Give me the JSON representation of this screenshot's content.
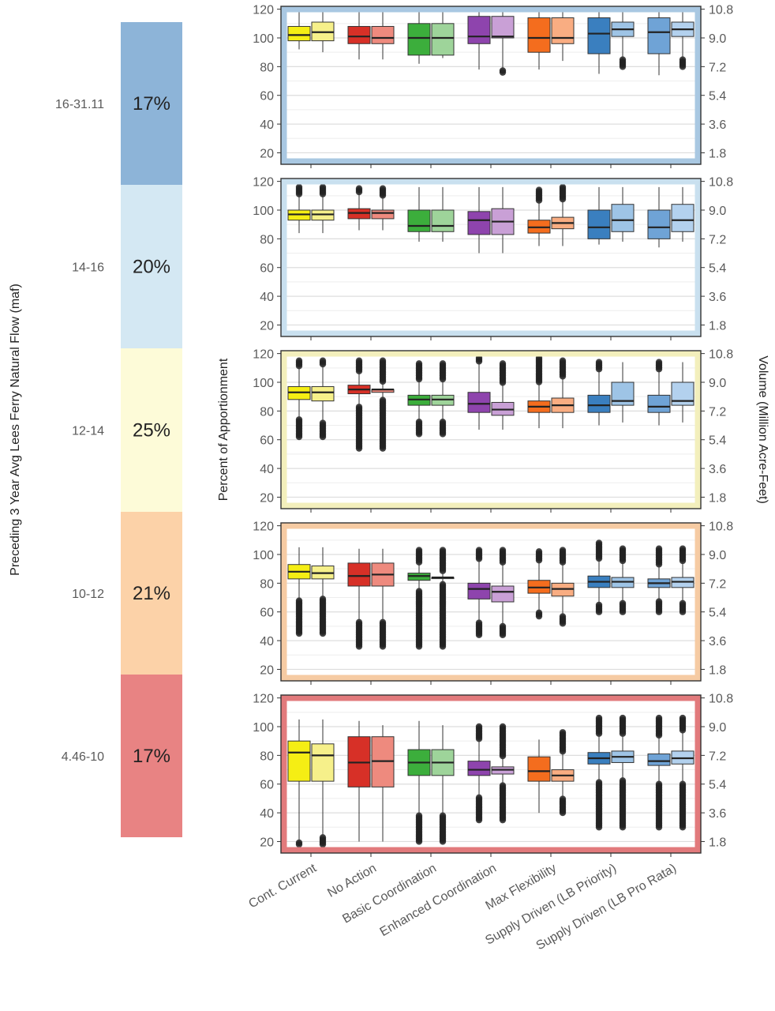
{
  "chart_data": {
    "type": "boxplot",
    "left_axis_title": "Percent of Apportionment",
    "right_axis_title": "Volume (Million Acre-Feet)",
    "band_axis_title": "Preceding 3 Year Avg Lees Ferry Natural Flow (maf)",
    "left_ticks": [
      20,
      40,
      60,
      80,
      100,
      120
    ],
    "right_ticks": [
      "1.8",
      "3.6",
      "5.4",
      "7.2",
      "9.0",
      "10.8"
    ],
    "ylim": [
      12,
      122
    ],
    "categories": [
      "Cont. Current",
      "No Action",
      "Basic Coordination",
      "Enhanced Coordination",
      "Max Flexibility",
      "Supply Driven (LB Priority)",
      "Supply Driven (LB Pro Rata)"
    ],
    "category_colors": [
      [
        "#f5ee14",
        "#f6f08a"
      ],
      [
        "#d73027",
        "#ee8a7e"
      ],
      [
        "#3cae3c",
        "#9ed49a"
      ],
      [
        "#8e44ad",
        "#c9a0d6"
      ],
      [
        "#f46d1e",
        "#f9ad82"
      ],
      [
        "#3a7fbf",
        "#9ec4e6"
      ],
      [
        "#6fa3d6",
        "#b3d1ee"
      ]
    ],
    "panels": [
      {
        "range": "16-31.11",
        "share": "17%",
        "band_color": "#8db4d8",
        "border_color": "#a9c8e2",
        "boxes": [
          [
            [
              102,
              98,
              108,
              92,
              118
            ],
            [
              104,
              98,
              111,
              90,
              118
            ]
          ],
          [
            [
              101,
              96,
              108,
              85,
              118
            ],
            [
              100,
              96,
              108,
              85,
              118
            ]
          ],
          [
            [
              100,
              88,
              110,
              82,
              118
            ],
            [
              100,
              88,
              110,
              86,
              118
            ]
          ],
          [
            [
              101,
              96,
              115,
              78,
              120
            ],
            [
              101,
              100,
              115,
              76,
              118
            ]
          ],
          [
            [
              100,
              90,
              114,
              78,
              118
            ],
            [
              100,
              96,
              114,
              84,
              118
            ]
          ],
          [
            [
              103,
              89,
              114,
              75,
              118
            ],
            [
              106,
              101,
              111,
              80,
              118
            ]
          ],
          [
            [
              104,
              89,
              114,
              74,
              118
            ],
            [
              106,
              101,
              111,
              80,
              118
            ]
          ]
        ]
      },
      {
        "range": "14-16",
        "share": "20%",
        "band_color": "#d4e8f3",
        "border_color": "#c9e0ef",
        "boxes": [
          [
            [
              97,
              93,
              100,
              84,
              116
            ],
            [
              97,
              93,
              100,
              84,
              116
            ]
          ],
          [
            [
              98,
              94,
              101,
              86,
              115
            ],
            [
              98,
              94,
              100,
              86,
              115
            ]
          ],
          [
            [
              89,
              85,
              100,
              78,
              116
            ],
            [
              89,
              85,
              100,
              78,
              116
            ]
          ],
          [
            [
              93,
              83,
              99,
              70,
              116
            ],
            [
              92,
              83,
              101,
              70,
              116
            ]
          ],
          [
            [
              88,
              84,
              93,
              75,
              114
            ],
            [
              91,
              87,
              95,
              75,
              116
            ]
          ],
          [
            [
              88,
              80,
              100,
              76,
              116
            ],
            [
              93,
              85,
              104,
              78,
              116
            ]
          ],
          [
            [
              88,
              80,
              100,
              74,
              116
            ],
            [
              93,
              85,
              104,
              78,
              116
            ]
          ]
        ]
      },
      {
        "range": "12-14",
        "share": "25%",
        "band_color": "#fdfbd8",
        "border_color": "#f3efbc",
        "boxes": [
          [
            [
              93,
              88,
              97,
              62,
              115
            ],
            [
              93,
              87,
              97,
              62,
              115
            ]
          ],
          [
            [
              95,
              92,
              98,
              54,
              115
            ],
            [
              95,
              93,
              95,
              54,
              115
            ]
          ],
          [
            [
              88,
              84,
              91,
              64,
              113
            ],
            [
              88,
              84,
              91,
              64,
              113
            ]
          ],
          [
            [
              85,
              79,
              93,
              67,
              117
            ],
            [
              81,
              77,
              86,
              67,
              113
            ]
          ],
          [
            [
              83,
              79,
              87,
              68,
              117
            ],
            [
              84,
              79,
              89,
              68,
              115
            ]
          ],
          [
            [
              84,
              79,
              91,
              70,
              114
            ],
            [
              87,
              84,
              100,
              72,
              114
            ]
          ],
          [
            [
              83,
              79,
              91,
              70,
              114
            ],
            [
              87,
              84,
              100,
              72,
              114
            ]
          ]
        ]
      },
      {
        "range": "10-12",
        "share": "21%",
        "band_color": "#fcd2a8",
        "border_color": "#f6cba3",
        "boxes": [
          [
            [
              88,
              83,
              93,
              45,
              105
            ],
            [
              87,
              83,
              92,
              45,
              105
            ]
          ],
          [
            [
              85,
              78,
              94,
              36,
              104
            ],
            [
              86,
              78,
              94,
              36,
              104
            ]
          ],
          [
            [
              85,
              82,
              87,
              36,
              103
            ],
            [
              84,
              84,
              84,
              36,
              103
            ]
          ],
          [
            [
              76,
              69,
              80,
              44,
              103
            ],
            [
              74,
              67,
              78,
              44,
              103
            ]
          ],
          [
            [
              77,
              73,
              82,
              57,
              102
            ],
            [
              76,
              71,
              80,
              52,
              103
            ]
          ],
          [
            [
              81,
              77,
              85,
              60,
              108
            ],
            [
              81,
              77,
              84,
              60,
              104
            ]
          ],
          [
            [
              80,
              77,
              83,
              60,
              104
            ],
            [
              81,
              77,
              84,
              60,
              104
            ]
          ]
        ]
      },
      {
        "range": "4.46-10",
        "share": "17%",
        "band_color": "#e88383",
        "border_color": "#e27a7c",
        "boxes": [
          [
            [
              82,
              62,
              90,
              18,
              105
            ],
            [
              80,
              62,
              88,
              18,
              105
            ]
          ],
          [
            [
              75,
              58,
              93,
              20,
              104
            ],
            [
              76,
              58,
              93,
              20,
              101
            ]
          ],
          [
            [
              75,
              66,
              84,
              20,
              104
            ],
            [
              75,
              66,
              84,
              20,
              101
            ]
          ],
          [
            [
              70,
              66,
              76,
              35,
              100
            ],
            [
              70,
              67,
              72,
              35,
              100
            ]
          ],
          [
            [
              69,
              62,
              79,
              40,
              91
            ],
            [
              66,
              62,
              70,
              40,
              96
            ]
          ],
          [
            [
              78,
              74,
              82,
              30,
              106
            ],
            [
              79,
              75,
              83,
              30,
              106
            ]
          ],
          [
            [
              76,
              73,
              81,
              30,
              106
            ],
            [
              78,
              74,
              83,
              30,
              106
            ]
          ]
        ]
      }
    ]
  }
}
